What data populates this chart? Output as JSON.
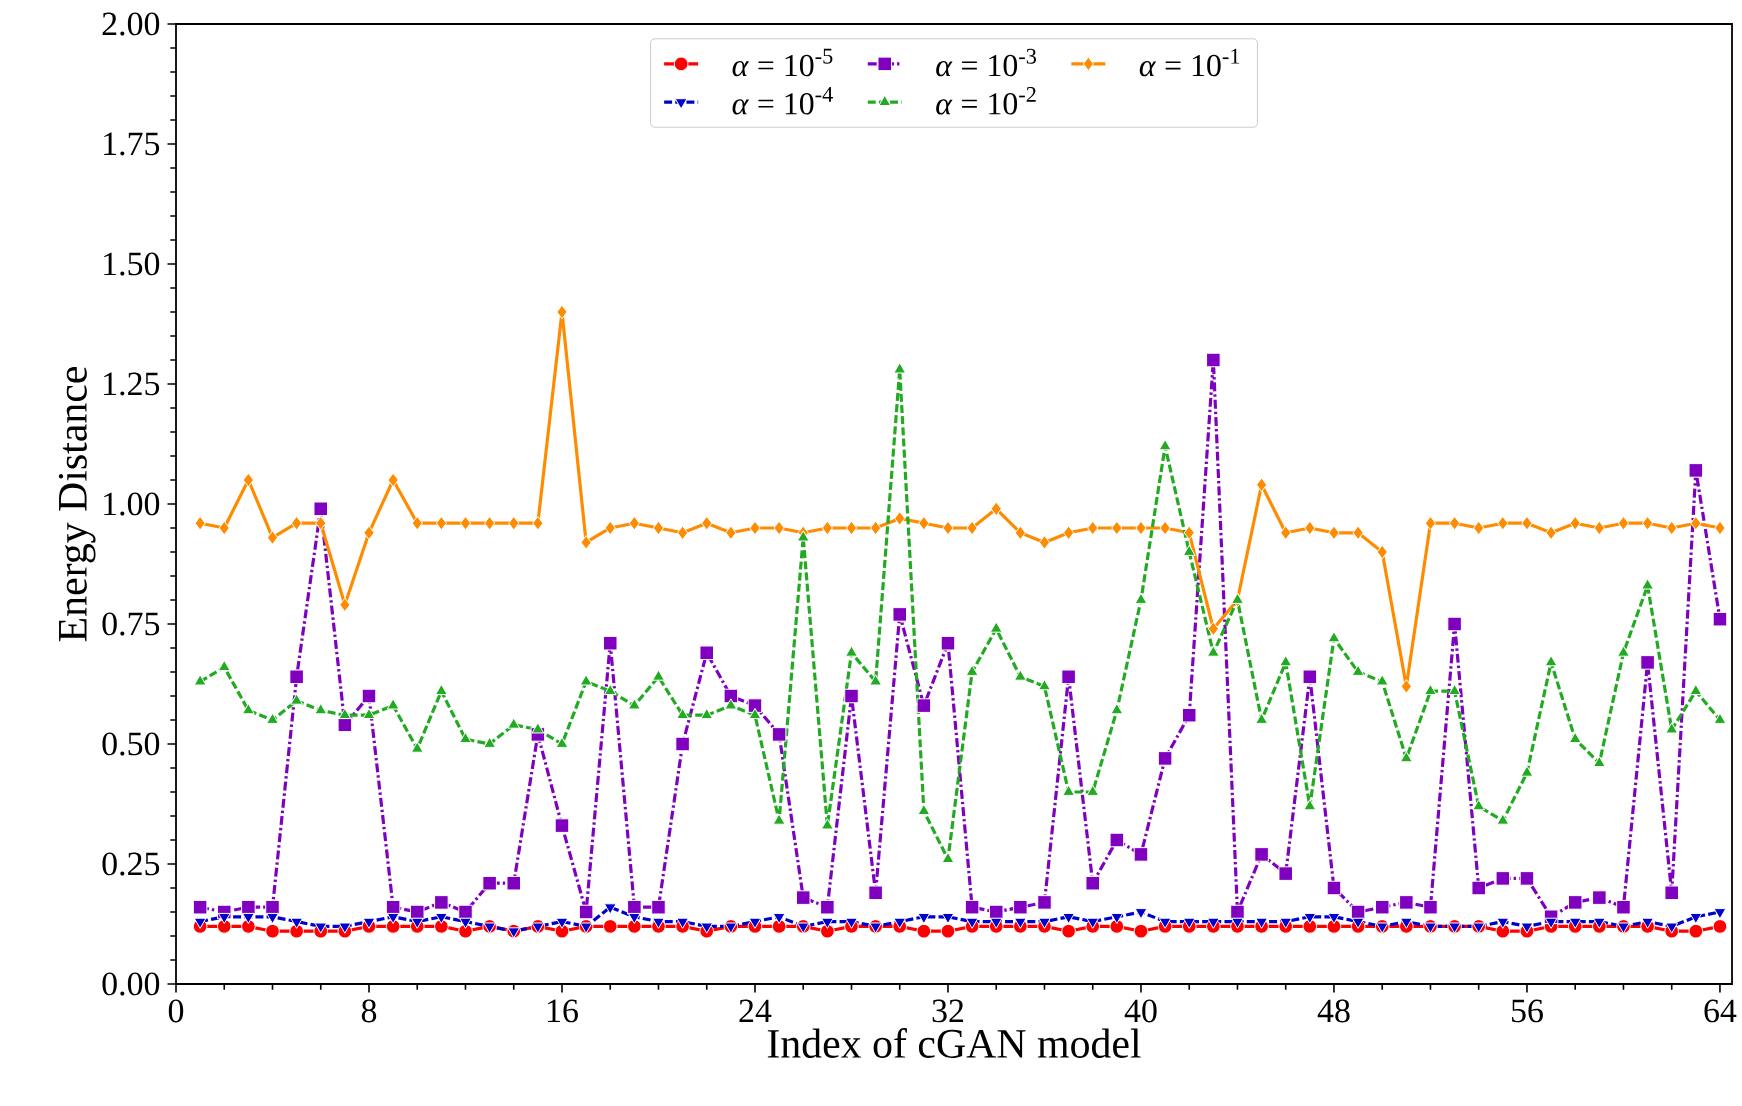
{
  "chart_data": {
    "type": "line",
    "xlabel": "Index of cGAN model",
    "ylabel": "Energy Distance",
    "x": [
      1,
      2,
      3,
      4,
      5,
      6,
      7,
      8,
      9,
      10,
      11,
      12,
      13,
      14,
      15,
      16,
      17,
      18,
      19,
      20,
      21,
      22,
      23,
      24,
      25,
      26,
      27,
      28,
      29,
      30,
      31,
      32,
      33,
      34,
      35,
      36,
      37,
      38,
      39,
      40,
      41,
      42,
      43,
      44,
      45,
      46,
      47,
      48,
      49,
      50,
      51,
      52,
      53,
      54,
      55,
      56,
      57,
      58,
      59,
      60,
      61,
      62,
      63,
      64
    ],
    "xlim": [
      0,
      64.5
    ],
    "xticks": [
      0,
      8,
      16,
      24,
      32,
      40,
      48,
      56,
      64
    ],
    "ylim": [
      0,
      2
    ],
    "yticks": [
      {
        "value": 0,
        "label": "0.00"
      },
      {
        "value": 0.25,
        "label": "0.25"
      },
      {
        "value": 0.5,
        "label": "0.50"
      },
      {
        "value": 0.75,
        "label": "0.75"
      },
      {
        "value": 1,
        "label": "1.00"
      },
      {
        "value": 1.25,
        "label": "1.25"
      },
      {
        "value": 1.5,
        "label": "1.50"
      },
      {
        "value": 1.75,
        "label": "1.75"
      },
      {
        "value": 2,
        "label": "2.00"
      }
    ],
    "grid": false,
    "legend": "top",
    "series": [
      {
        "name": "*α* = 10$^{-5}$",
        "color": "#ff0000",
        "marker": "circle",
        "line_style": "solid",
        "values": [
          0.12,
          0.12,
          0.12,
          0.11,
          0.11,
          0.11,
          0.11,
          0.12,
          0.12,
          0.12,
          0.12,
          0.11,
          0.12,
          0.11,
          0.12,
          0.11,
          0.12,
          0.12,
          0.12,
          0.12,
          0.12,
          0.11,
          0.12,
          0.12,
          0.12,
          0.12,
          0.11,
          0.12,
          0.12,
          0.12,
          0.11,
          0.11,
          0.12,
          0.12,
          0.12,
          0.12,
          0.11,
          0.12,
          0.12,
          0.11,
          0.12,
          0.12,
          0.12,
          0.12,
          0.12,
          0.12,
          0.12,
          0.12,
          0.12,
          0.12,
          0.12,
          0.12,
          0.12,
          0.12,
          0.11,
          0.11,
          0.12,
          0.12,
          0.12,
          0.12,
          0.12,
          0.11,
          0.11,
          0.12
        ]
      },
      {
        "name": "*α* = 10$^{-4}$",
        "color": "#0000cc",
        "marker": "triangle_down",
        "line_style": "dashed",
        "values": [
          0.13,
          0.14,
          0.14,
          0.14,
          0.13,
          0.12,
          0.12,
          0.13,
          0.14,
          0.13,
          0.14,
          0.13,
          0.12,
          0.11,
          0.12,
          0.13,
          0.12,
          0.16,
          0.14,
          0.13,
          0.13,
          0.12,
          0.12,
          0.13,
          0.14,
          0.12,
          0.13,
          0.13,
          0.12,
          0.13,
          0.14,
          0.14,
          0.13,
          0.13,
          0.13,
          0.13,
          0.14,
          0.13,
          0.14,
          0.15,
          0.13,
          0.13,
          0.13,
          0.13,
          0.13,
          0.13,
          0.14,
          0.14,
          0.13,
          0.12,
          0.13,
          0.12,
          0.12,
          0.12,
          0.13,
          0.12,
          0.13,
          0.13,
          0.13,
          0.12,
          0.13,
          0.12,
          0.14,
          0.15
        ]
      },
      {
        "name": "*α* = 10$^{-3}$",
        "color": "#7f00bf",
        "marker": "square",
        "line_style": "dashdot",
        "values": [
          0.16,
          0.15,
          0.16,
          0.16,
          0.64,
          0.99,
          0.54,
          0.6,
          0.16,
          0.15,
          0.17,
          0.15,
          0.21,
          0.21,
          0.52,
          0.33,
          0.15,
          0.71,
          0.16,
          0.16,
          0.5,
          0.69,
          0.6,
          0.58,
          0.52,
          0.18,
          0.16,
          0.6,
          0.19,
          0.77,
          0.58,
          0.71,
          0.16,
          0.15,
          0.16,
          0.17,
          0.64,
          0.21,
          0.3,
          0.27,
          0.47,
          0.56,
          1.3,
          0.15,
          0.27,
          0.23,
          0.64,
          0.2,
          0.15,
          0.16,
          0.17,
          0.16,
          0.75,
          0.2,
          0.22,
          0.22,
          0.14,
          0.17,
          0.18,
          0.16,
          0.67,
          0.19,
          1.07,
          0.76
        ]
      },
      {
        "name": "*α* = 10$^{-2}$",
        "color": "#22aa22",
        "marker": "triangle",
        "line_style": "dashed",
        "values": [
          0.63,
          0.66,
          0.57,
          0.55,
          0.59,
          0.57,
          0.56,
          0.56,
          0.58,
          0.49,
          0.61,
          0.51,
          0.5,
          0.54,
          0.53,
          0.5,
          0.63,
          0.61,
          0.58,
          0.64,
          0.56,
          0.56,
          0.58,
          0.56,
          0.34,
          0.93,
          0.33,
          0.69,
          0.63,
          1.28,
          0.36,
          0.26,
          0.65,
          0.74,
          0.64,
          0.62,
          0.4,
          0.4,
          0.57,
          0.8,
          1.12,
          0.9,
          0.69,
          0.8,
          0.55,
          0.67,
          0.37,
          0.72,
          0.65,
          0.63,
          0.47,
          0.61,
          0.61,
          0.37,
          0.34,
          0.44,
          0.67,
          0.51,
          0.46,
          0.69,
          0.83,
          0.53,
          0.61,
          0.55
        ]
      },
      {
        "name": "*α* = 10$^{-1}$",
        "color": "#ff8c00",
        "marker": "diamond",
        "line_style": "solid",
        "values": [
          0.96,
          0.95,
          1.05,
          0.93,
          0.96,
          0.96,
          0.79,
          0.94,
          1.05,
          0.96,
          0.96,
          0.96,
          0.96,
          0.96,
          0.96,
          1.4,
          0.92,
          0.95,
          0.96,
          0.95,
          0.94,
          0.96,
          0.94,
          0.95,
          0.95,
          0.94,
          0.95,
          0.95,
          0.95,
          0.97,
          0.96,
          0.95,
          0.95,
          0.99,
          0.94,
          0.92,
          0.94,
          0.95,
          0.95,
          0.95,
          0.95,
          0.94,
          0.74,
          0.8,
          1.04,
          0.94,
          0.95,
          0.94,
          0.94,
          0.9,
          0.62,
          0.96,
          0.96,
          0.95,
          0.96,
          0.96,
          0.94,
          0.96,
          0.95,
          0.96,
          0.96,
          0.95,
          0.96,
          0.95
        ]
      }
    ]
  }
}
